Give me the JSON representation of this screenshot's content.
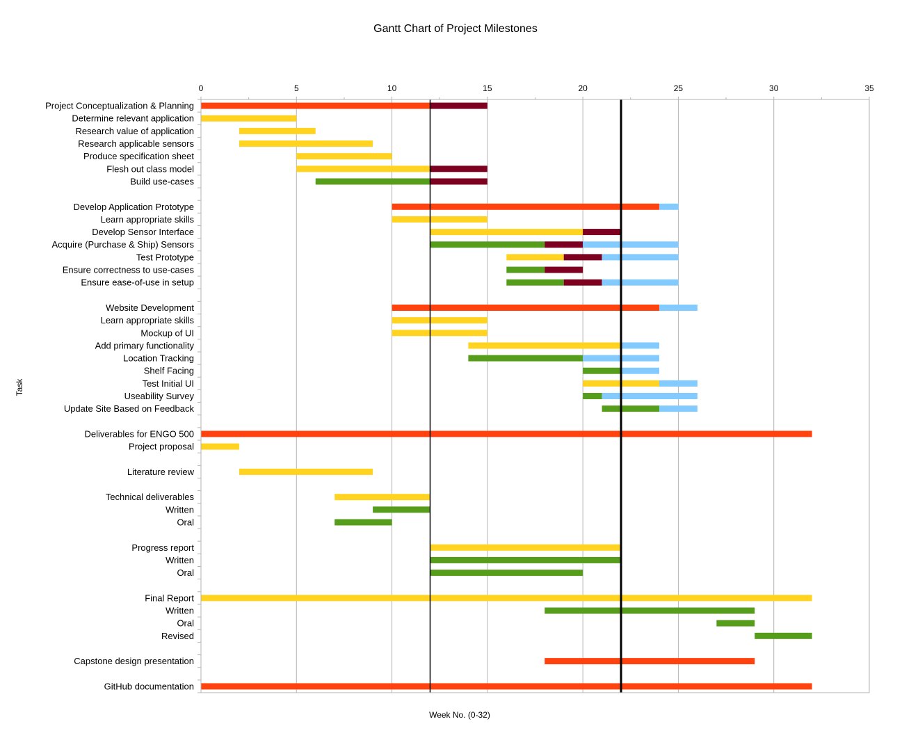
{
  "chart_data": {
    "type": "gantt",
    "title": "Gantt Chart of Project Milestones",
    "xlabel": "Week No. (0-32)",
    "ylabel": "Task",
    "xlim": [
      0,
      35
    ],
    "xticks": [
      0,
      5,
      10,
      15,
      20,
      25,
      30,
      35
    ],
    "grid": true,
    "reference_lines": [
      {
        "x": 12,
        "style": "thin"
      },
      {
        "x": 22,
        "style": "thick"
      }
    ],
    "colors": {
      "red": "#ff420e",
      "yellow": "#ffd320",
      "green": "#579d1c",
      "maroon": "#7e0021",
      "blue": "#83caff"
    },
    "tasks": [
      {
        "label": "Project Conceptualization & Planning",
        "segments": [
          {
            "start": 0,
            "end": 12,
            "color": "red"
          },
          {
            "start": 12,
            "end": 15,
            "color": "maroon"
          }
        ]
      },
      {
        "label": "Determine relevant application",
        "segments": [
          {
            "start": 0,
            "end": 5,
            "color": "yellow"
          }
        ]
      },
      {
        "label": "Research value of application",
        "segments": [
          {
            "start": 2,
            "end": 6,
            "color": "yellow"
          }
        ]
      },
      {
        "label": "Research applicable sensors",
        "segments": [
          {
            "start": 2,
            "end": 9,
            "color": "yellow"
          }
        ]
      },
      {
        "label": "Produce specification sheet",
        "segments": [
          {
            "start": 5,
            "end": 10,
            "color": "yellow"
          }
        ]
      },
      {
        "label": "Flesh out class model",
        "segments": [
          {
            "start": 5,
            "end": 12,
            "color": "yellow"
          },
          {
            "start": 12,
            "end": 15,
            "color": "maroon"
          }
        ]
      },
      {
        "label": "Build use-cases",
        "segments": [
          {
            "start": 6,
            "end": 12,
            "color": "green"
          },
          {
            "start": 12,
            "end": 15,
            "color": "maroon"
          }
        ]
      },
      {
        "label": "",
        "segments": []
      },
      {
        "label": "Develop Application Prototype",
        "segments": [
          {
            "start": 10,
            "end": 24,
            "color": "red"
          },
          {
            "start": 24,
            "end": 25,
            "color": "blue"
          }
        ]
      },
      {
        "label": "Learn appropriate skills",
        "segments": [
          {
            "start": 10,
            "end": 15,
            "color": "yellow"
          }
        ]
      },
      {
        "label": "Develop Sensor Interface",
        "segments": [
          {
            "start": 12,
            "end": 20,
            "color": "yellow"
          },
          {
            "start": 20,
            "end": 22,
            "color": "maroon"
          }
        ]
      },
      {
        "label": "Acquire (Purchase & Ship) Sensors",
        "segments": [
          {
            "start": 12,
            "end": 18,
            "color": "green"
          },
          {
            "start": 18,
            "end": 20,
            "color": "maroon"
          },
          {
            "start": 20,
            "end": 25,
            "color": "blue"
          }
        ]
      },
      {
        "label": "Test Prototype",
        "segments": [
          {
            "start": 16,
            "end": 19,
            "color": "yellow"
          },
          {
            "start": 19,
            "end": 21,
            "color": "maroon"
          },
          {
            "start": 21,
            "end": 25,
            "color": "blue"
          }
        ]
      },
      {
        "label": "Ensure correctness to use-cases",
        "segments": [
          {
            "start": 16,
            "end": 18,
            "color": "green"
          },
          {
            "start": 18,
            "end": 20,
            "color": "maroon"
          }
        ]
      },
      {
        "label": "Ensure ease-of-use in setup",
        "segments": [
          {
            "start": 16,
            "end": 19,
            "color": "green"
          },
          {
            "start": 19,
            "end": 21,
            "color": "maroon"
          },
          {
            "start": 21,
            "end": 25,
            "color": "blue"
          }
        ]
      },
      {
        "label": "",
        "segments": []
      },
      {
        "label": "Website Development",
        "segments": [
          {
            "start": 10,
            "end": 24,
            "color": "red"
          },
          {
            "start": 24,
            "end": 26,
            "color": "blue"
          }
        ]
      },
      {
        "label": "Learn appropriate skills",
        "segments": [
          {
            "start": 10,
            "end": 15,
            "color": "yellow"
          }
        ]
      },
      {
        "label": "Mockup of UI",
        "segments": [
          {
            "start": 10,
            "end": 15,
            "color": "yellow"
          }
        ]
      },
      {
        "label": "Add primary functionality",
        "segments": [
          {
            "start": 14,
            "end": 22,
            "color": "yellow"
          },
          {
            "start": 22,
            "end": 24,
            "color": "blue"
          }
        ]
      },
      {
        "label": "Location Tracking",
        "segments": [
          {
            "start": 14,
            "end": 20,
            "color": "green"
          },
          {
            "start": 20,
            "end": 24,
            "color": "blue"
          }
        ]
      },
      {
        "label": "Shelf Facing",
        "segments": [
          {
            "start": 20,
            "end": 22,
            "color": "green"
          },
          {
            "start": 22,
            "end": 24,
            "color": "blue"
          }
        ]
      },
      {
        "label": "Test Initial UI",
        "segments": [
          {
            "start": 20,
            "end": 24,
            "color": "yellow"
          },
          {
            "start": 24,
            "end": 26,
            "color": "blue"
          }
        ]
      },
      {
        "label": "Useability Survey",
        "segments": [
          {
            "start": 20,
            "end": 21,
            "color": "green"
          },
          {
            "start": 21,
            "end": 26,
            "color": "blue"
          }
        ]
      },
      {
        "label": "Update Site Based on Feedback",
        "segments": [
          {
            "start": 21,
            "end": 24,
            "color": "green"
          },
          {
            "start": 24,
            "end": 26,
            "color": "blue"
          }
        ]
      },
      {
        "label": "",
        "segments": []
      },
      {
        "label": "Deliverables for ENGO 500",
        "segments": [
          {
            "start": 0,
            "end": 32,
            "color": "red"
          }
        ]
      },
      {
        "label": "Project proposal",
        "segments": [
          {
            "start": 0,
            "end": 2,
            "color": "yellow"
          }
        ]
      },
      {
        "label": "",
        "segments": []
      },
      {
        "label": "Literature review",
        "segments": [
          {
            "start": 2,
            "end": 9,
            "color": "yellow"
          }
        ]
      },
      {
        "label": "",
        "segments": []
      },
      {
        "label": "Technical deliverables",
        "segments": [
          {
            "start": 7,
            "end": 12,
            "color": "yellow"
          }
        ]
      },
      {
        "label": "Written",
        "segments": [
          {
            "start": 9,
            "end": 12,
            "color": "green"
          }
        ]
      },
      {
        "label": "Oral",
        "segments": [
          {
            "start": 7,
            "end": 10,
            "color": "green"
          }
        ]
      },
      {
        "label": "",
        "segments": []
      },
      {
        "label": "Progress report",
        "segments": [
          {
            "start": 12,
            "end": 22,
            "color": "yellow"
          }
        ]
      },
      {
        "label": "Written",
        "segments": [
          {
            "start": 12,
            "end": 22,
            "color": "green"
          }
        ]
      },
      {
        "label": "Oral",
        "segments": [
          {
            "start": 12,
            "end": 20,
            "color": "green"
          }
        ]
      },
      {
        "label": "",
        "segments": []
      },
      {
        "label": "Final Report",
        "segments": [
          {
            "start": 0,
            "end": 32,
            "color": "yellow"
          }
        ]
      },
      {
        "label": "Written",
        "segments": [
          {
            "start": 18,
            "end": 29,
            "color": "green"
          }
        ]
      },
      {
        "label": "Oral",
        "segments": [
          {
            "start": 27,
            "end": 29,
            "color": "green"
          }
        ]
      },
      {
        "label": "Revised",
        "segments": [
          {
            "start": 29,
            "end": 32,
            "color": "green"
          }
        ]
      },
      {
        "label": "",
        "segments": []
      },
      {
        "label": "Capstone design presentation",
        "segments": [
          {
            "start": 18,
            "end": 29,
            "color": "red"
          }
        ]
      },
      {
        "label": "",
        "segments": []
      },
      {
        "label": "GitHub documentation",
        "segments": [
          {
            "start": 0,
            "end": 32,
            "color": "red"
          }
        ]
      }
    ]
  }
}
